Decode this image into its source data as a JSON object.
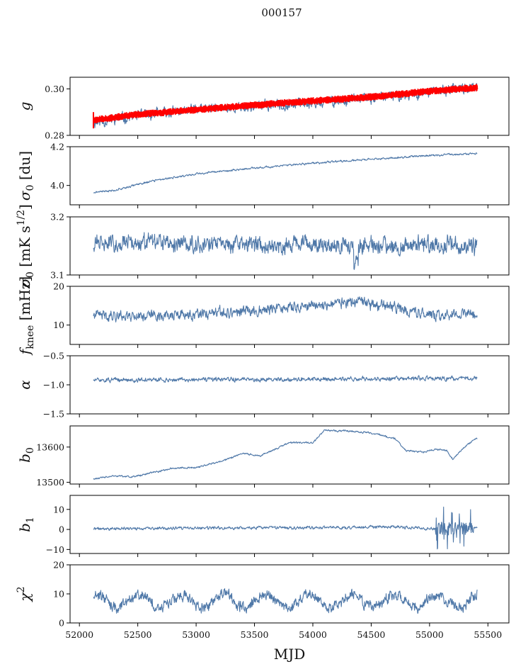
{
  "title": "000157",
  "series_color": "#4f78a8",
  "overlay_color": "#ff0000",
  "chart_data": [
    {
      "type": "line",
      "ylabel": "g",
      "ylim": [
        0.28,
        0.305
      ],
      "yticks": [
        0.28,
        0.3
      ],
      "ytick_labels": [
        "0.28",
        "0.30"
      ],
      "series": [
        {
          "kind": "noisy",
          "anchors": [
            [
              52120,
              0.2855
            ],
            [
              52200,
              0.286
            ],
            [
              52500,
              0.2885
            ],
            [
              53000,
              0.291
            ],
            [
              53500,
              0.2925
            ],
            [
              54000,
              0.294
            ],
            [
              54500,
              0.296
            ],
            [
              55000,
              0.2985
            ],
            [
              55300,
              0.3005
            ],
            [
              55400,
              0.3
            ]
          ],
          "noise": 0.0018,
          "seed": 11,
          "color": "#4f78a8"
        },
        {
          "kind": "band",
          "anchors": [
            [
              52120,
              0.2865
            ],
            [
              52500,
              0.289
            ],
            [
              53000,
              0.291
            ],
            [
              53500,
              0.293
            ],
            [
              54000,
              0.2948
            ],
            [
              54500,
              0.2965
            ],
            [
              55000,
              0.299
            ],
            [
              55400,
              0.3005
            ]
          ],
          "width": 0.0016,
          "color": "#ff0000"
        }
      ]
    },
    {
      "type": "line",
      "ylabel": "σ0 [du]",
      "ylim": [
        3.9,
        4.2
      ],
      "yticks": [
        4.0,
        4.2
      ],
      "ytick_labels": [
        "4.0",
        "4.2"
      ],
      "series": [
        {
          "kind": "noisy",
          "anchors": [
            [
              52130,
              3.965
            ],
            [
              52300,
              3.975
            ],
            [
              52600,
              4.02
            ],
            [
              53000,
              4.06
            ],
            [
              53500,
              4.09
            ],
            [
              54000,
              4.115
            ],
            [
              54500,
              4.135
            ],
            [
              55000,
              4.155
            ],
            [
              55400,
              4.165
            ]
          ],
          "noise": 0.004,
          "seed": 21,
          "color": "#4f78a8"
        }
      ]
    },
    {
      "type": "line",
      "ylabel": "σ0 [mK s^1/2]",
      "ylim": [
        3.1,
        3.2
      ],
      "yticks": [
        3.1,
        3.2
      ],
      "ytick_labels": [
        "3.1",
        "3.2"
      ],
      "series": [
        {
          "kind": "noisy",
          "anchors": [
            [
              52130,
              3.155
            ],
            [
              55400,
              3.15
            ]
          ],
          "noise": 0.012,
          "seed": 31,
          "color": "#4f78a8"
        }
      ]
    },
    {
      "type": "line",
      "ylabel": "f_knee [mHz]",
      "ylim": [
        5,
        20
      ],
      "yticks": [
        10,
        20
      ],
      "ytick_labels": [
        "10",
        "20"
      ],
      "series": [
        {
          "kind": "noisy",
          "anchors": [
            [
              52130,
              12.5
            ],
            [
              53000,
              12.5
            ],
            [
              54000,
              15
            ],
            [
              54300,
              16
            ],
            [
              54700,
              14.5
            ],
            [
              55000,
              12.5
            ],
            [
              55400,
              13
            ]
          ],
          "noise": 1.1,
          "seed": 41,
          "color": "#4f78a8"
        }
      ]
    },
    {
      "type": "line",
      "ylabel": "α",
      "ylim": [
        -1.5,
        -0.5
      ],
      "yticks": [
        -1.5,
        -1.0,
        -0.5
      ],
      "ytick_labels": [
        "−1.5",
        "−1.0",
        "−0.5"
      ],
      "series": [
        {
          "kind": "noisy",
          "anchors": [
            [
              52130,
              -0.92
            ],
            [
              55400,
              -0.89
            ]
          ],
          "noise": 0.03,
          "seed": 51,
          "color": "#4f78a8"
        }
      ]
    },
    {
      "type": "line",
      "ylabel": "b0",
      "ylim": [
        13495,
        13660
      ],
      "yticks": [
        13500,
        13600
      ],
      "ytick_labels": [
        "13500",
        "13600"
      ],
      "series": [
        {
          "kind": "noisy",
          "anchors": [
            [
              52130,
              13510
            ],
            [
              52300,
              13518
            ],
            [
              52450,
              13515
            ],
            [
              52600,
              13525
            ],
            [
              52800,
              13540
            ],
            [
              53000,
              13542
            ],
            [
              53200,
              13558
            ],
            [
              53400,
              13582
            ],
            [
              53550,
              13575
            ],
            [
              53800,
              13613
            ],
            [
              54000,
              13612
            ],
            [
              54100,
              13648
            ],
            [
              54300,
              13645
            ],
            [
              54500,
              13640
            ],
            [
              54700,
              13625
            ],
            [
              54800,
              13590
            ],
            [
              54950,
              13585
            ],
            [
              55050,
              13595
            ],
            [
              55150,
              13590
            ],
            [
              55200,
              13565
            ],
            [
              55300,
              13600
            ],
            [
              55400,
              13625
            ]
          ],
          "noise": 2,
          "seed": 61,
          "color": "#4f78a8"
        }
      ]
    },
    {
      "type": "line",
      "ylabel": "b1",
      "ylim": [
        -12,
        17
      ],
      "yticks": [
        -10,
        0,
        10
      ],
      "ytick_labels": [
        "−10",
        "0",
        "10"
      ],
      "series": [
        {
          "kind": "noisy",
          "anchors": [
            [
              52130,
              0.3
            ],
            [
              54700,
              1.2
            ],
            [
              55000,
              0.3
            ],
            [
              55400,
              0.5
            ]
          ],
          "noise": 0.6,
          "seed": 71,
          "color": "#4f78a8"
        }
      ]
    },
    {
      "type": "line",
      "ylabel": "χ2",
      "ylim": [
        0,
        20
      ],
      "yticks": [
        0,
        10,
        20
      ],
      "ytick_labels": [
        "0",
        "10",
        "20"
      ],
      "series": [
        {
          "kind": "periodic",
          "mean": 7.5,
          "amp": 2.2,
          "period": 365,
          "noise": 1.6,
          "seed": 81,
          "color": "#4f78a8"
        }
      ]
    }
  ],
  "xaxis": {
    "label": "MJD",
    "lim": [
      51920,
      55680
    ],
    "ticks": [
      52000,
      52500,
      53000,
      53500,
      54000,
      54500,
      55000,
      55500
    ],
    "tick_labels": [
      "52000",
      "52500",
      "53000",
      "53500",
      "54000",
      "54500",
      "55000",
      "55500"
    ],
    "data_start": 52120,
    "data_end": 55410
  }
}
